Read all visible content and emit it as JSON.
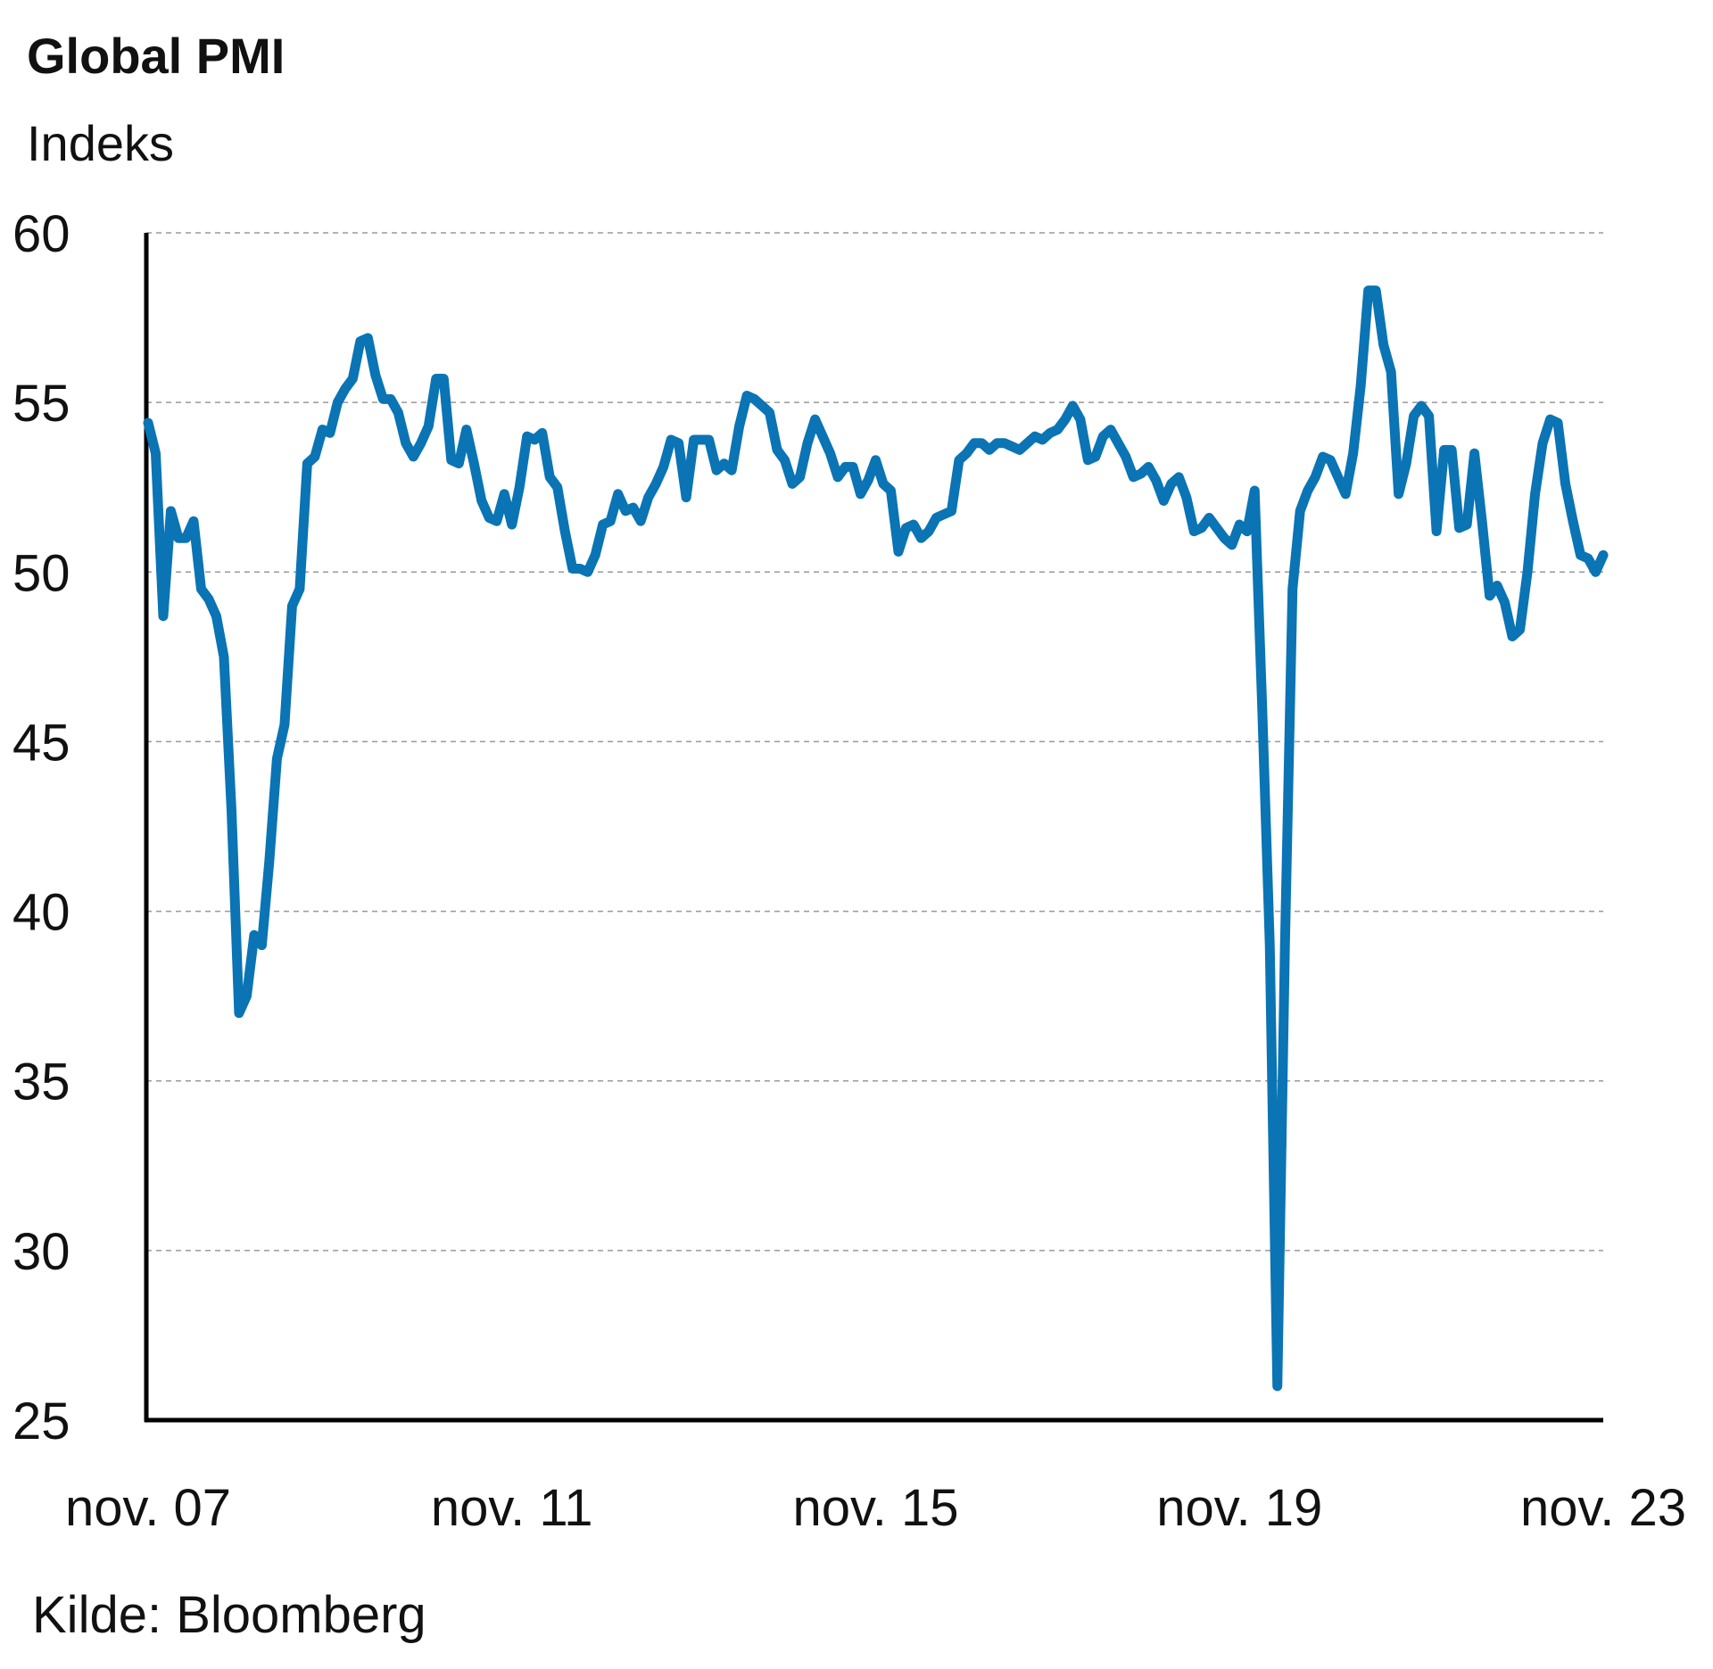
{
  "chart_data": {
    "type": "line",
    "title": "Global PMI",
    "subtitle": "Indeks",
    "source": "Kilde: Bloomberg",
    "categories": [
      "nov. 07",
      null,
      null,
      null,
      null,
      null,
      null,
      null,
      null,
      null,
      null,
      null,
      null,
      null,
      null,
      null,
      null,
      null,
      null,
      null,
      null,
      null,
      null,
      null,
      null,
      null,
      null,
      null,
      null,
      null,
      null,
      null,
      null,
      null,
      null,
      null,
      null,
      null,
      null,
      null,
      null,
      null,
      null,
      null,
      null,
      null,
      null,
      null,
      "nov. 11",
      null,
      null,
      null,
      null,
      null,
      null,
      null,
      null,
      null,
      null,
      null,
      null,
      null,
      null,
      null,
      null,
      null,
      null,
      null,
      null,
      null,
      null,
      null,
      null,
      null,
      null,
      null,
      null,
      null,
      null,
      null,
      null,
      null,
      null,
      null,
      null,
      null,
      null,
      null,
      null,
      null,
      null,
      null,
      null,
      null,
      null,
      null,
      "nov. 15",
      null,
      null,
      null,
      null,
      null,
      null,
      null,
      null,
      null,
      null,
      null,
      null,
      null,
      null,
      null,
      null,
      null,
      null,
      null,
      null,
      null,
      null,
      null,
      null,
      null,
      null,
      null,
      null,
      null,
      null,
      null,
      null,
      null,
      null,
      null,
      null,
      null,
      null,
      null,
      null,
      null,
      null,
      null,
      null,
      null,
      null,
      null,
      "nov. 19",
      null,
      null,
      null,
      null,
      null,
      null,
      null,
      null,
      null,
      null,
      null,
      null,
      null,
      null,
      null,
      null,
      null,
      null,
      null,
      null,
      null,
      null,
      null,
      null,
      null,
      null,
      null,
      null,
      null,
      null,
      null,
      null,
      null,
      null,
      null,
      null,
      null,
      null,
      null,
      null,
      null,
      null,
      null,
      null,
      null,
      null,
      null,
      "nov. 23"
    ],
    "values": [
      54.4,
      53.5,
      48.7,
      51.8,
      51.0,
      51.0,
      51.5,
      49.5,
      49.2,
      48.7,
      47.5,
      43,
      37,
      37.5,
      39.3,
      39,
      41.5,
      44.5,
      45.5,
      49,
      49.5,
      53.2,
      53.4,
      54.2,
      54.1,
      55,
      55.4,
      55.7,
      56.8,
      56.9,
      55.8,
      55.1,
      55.1,
      54.7,
      53.8,
      53.4,
      53.8,
      54.3,
      55.7,
      55.7,
      53.3,
      53.2,
      54.2,
      53.2,
      52.1,
      51.6,
      51.5,
      52.3,
      51.4,
      52.5,
      54,
      53.9,
      54.1,
      52.8,
      52.5,
      51.2,
      50.1,
      50.1,
      50.0,
      50.5,
      51.4,
      51.5,
      52.3,
      51.8,
      51.9,
      51.5,
      52.2,
      52.6,
      53.1,
      53.9,
      53.8,
      52.2,
      53.9,
      53.9,
      53.9,
      53.0,
      53.2,
      53.0,
      54.3,
      55.2,
      55.1,
      54.9,
      54.7,
      53.6,
      53.3,
      52.6,
      52.8,
      53.8,
      54.5,
      54.0,
      53.5,
      52.8,
      53.1,
      53.1,
      52.3,
      52.7,
      53.3,
      52.6,
      52.4,
      50.6,
      51.3,
      51.4,
      51.0,
      51.2,
      51.6,
      51.7,
      51.8,
      53.3,
      53.5,
      53.8,
      53.8,
      53.6,
      53.8,
      53.8,
      53.7,
      53.6,
      53.8,
      54.0,
      53.9,
      54.1,
      54.2,
      54.5,
      54.9,
      54.5,
      53.3,
      53.4,
      54.0,
      54.2,
      53.8,
      53.4,
      52.8,
      52.9,
      53.1,
      52.7,
      52.1,
      52.6,
      52.8,
      52.2,
      51.2,
      51.3,
      51.6,
      51.3,
      51.0,
      50.8,
      51.4,
      51.2,
      52.4,
      46,
      39,
      26,
      39,
      49.5,
      51.8,
      52.4,
      52.8,
      53.4,
      53.3,
      52.8,
      52.3,
      53.5,
      55.5,
      58.3,
      58.3,
      56.7,
      55.9,
      52.3,
      53.2,
      54.6,
      54.9,
      54.6,
      51.2,
      53.6,
      53.6,
      51.3,
      51.4,
      53.5,
      51.5,
      49.3,
      49.6,
      49.1,
      48.1,
      48.3,
      50,
      52.3,
      53.8,
      54.5,
      54.4,
      52.6,
      51.5,
      50.5,
      50.4,
      50.0,
      50.5
    ],
    "color": "#0a74b4",
    "ylim": [
      25,
      60
    ],
    "yticks": [
      25,
      30,
      35,
      40,
      45,
      50,
      55,
      60
    ],
    "grid": true
  }
}
